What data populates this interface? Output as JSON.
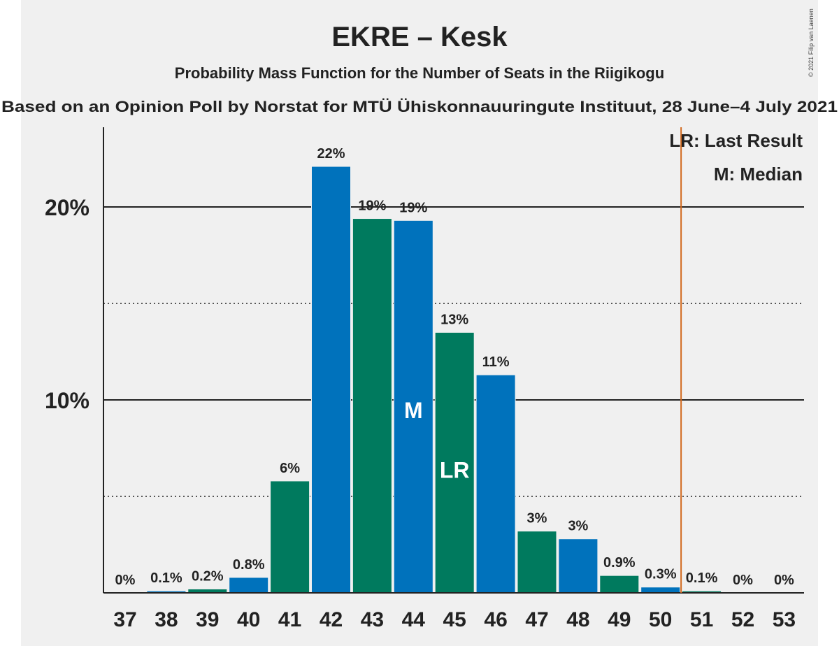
{
  "chart_data": {
    "type": "bar",
    "title": "EKRE – Kesk",
    "subtitle": "Probability Mass Function for the Number of Seats in the Riigikogu",
    "subtitle2": "Based on an Opinion Poll by Norstat for MTÜ Ühiskonnauuringute Instituut, 28 June–4 July 2021",
    "copyright": "© 2021 Filip van Laenen",
    "categories": [
      "37",
      "38",
      "39",
      "40",
      "41",
      "42",
      "43",
      "44",
      "45",
      "46",
      "47",
      "48",
      "49",
      "50",
      "51",
      "52",
      "53"
    ],
    "values": [
      0,
      0.1,
      0.2,
      0.8,
      5.8,
      22.1,
      19.4,
      19.3,
      13.5,
      11.3,
      3.2,
      2.8,
      0.9,
      0.3,
      0.1,
      0,
      0
    ],
    "labels": [
      "0%",
      "0.1%",
      "0.2%",
      "0.8%",
      "6%",
      "22%",
      "19%",
      "19%",
      "13%",
      "11%",
      "3%",
      "3%",
      "0.9%",
      "0.3%",
      "0.1%",
      "0%",
      "0%"
    ],
    "ylim": [
      0,
      24
    ],
    "yticks": [
      {
        "value": 10,
        "label": "10%"
      },
      {
        "value": 20,
        "label": "20%"
      }
    ],
    "minor_gridlines": [
      5,
      15
    ],
    "median": {
      "seat": "44",
      "marker": "M"
    },
    "last_result": {
      "seat": "45",
      "marker": "LR"
    },
    "majority_line_after": "50",
    "legend": [
      "LR: Last Result",
      "M: Median"
    ],
    "legend_position": "top-right",
    "colors": {
      "blue": "#0072bc",
      "green": "#007a5e",
      "majority_line": "#d2691e",
      "grid": "#222222",
      "background": "#f0f0f0"
    }
  }
}
